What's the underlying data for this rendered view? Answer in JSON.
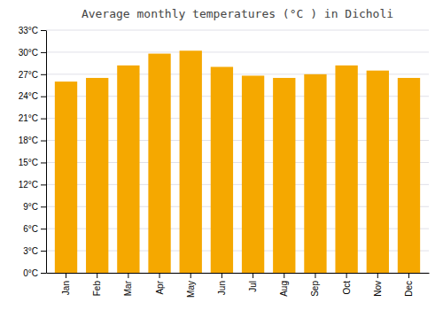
{
  "chart_data": {
    "type": "bar",
    "title": "Average monthly temperatures (°C ) in Dicholi",
    "categories": [
      "Jan",
      "Feb",
      "Mar",
      "Apr",
      "May",
      "Jun",
      "Jul",
      "Aug",
      "Sep",
      "Oct",
      "Nov",
      "Dec"
    ],
    "values": [
      26.0,
      26.5,
      28.2,
      29.8,
      30.2,
      28.0,
      26.8,
      26.5,
      27.0,
      28.2,
      27.5,
      26.5
    ],
    "color": "#F5A800",
    "ylim": [
      0,
      33
    ],
    "yticks": [
      {
        "value": 0,
        "label": "0°C"
      },
      {
        "value": 3,
        "label": "3°C"
      },
      {
        "value": 6,
        "label": "6°C"
      },
      {
        "value": 9,
        "label": "9°C"
      },
      {
        "value": 12,
        "label": "12°C"
      },
      {
        "value": 15,
        "label": "15°C"
      },
      {
        "value": 18,
        "label": "18°C"
      },
      {
        "value": 21,
        "label": "21°C"
      },
      {
        "value": 24,
        "label": "24°C"
      },
      {
        "value": 27,
        "label": "27°C"
      },
      {
        "value": 30,
        "label": "30°C"
      },
      {
        "value": 33,
        "label": "33°C"
      }
    ],
    "grid": true
  }
}
